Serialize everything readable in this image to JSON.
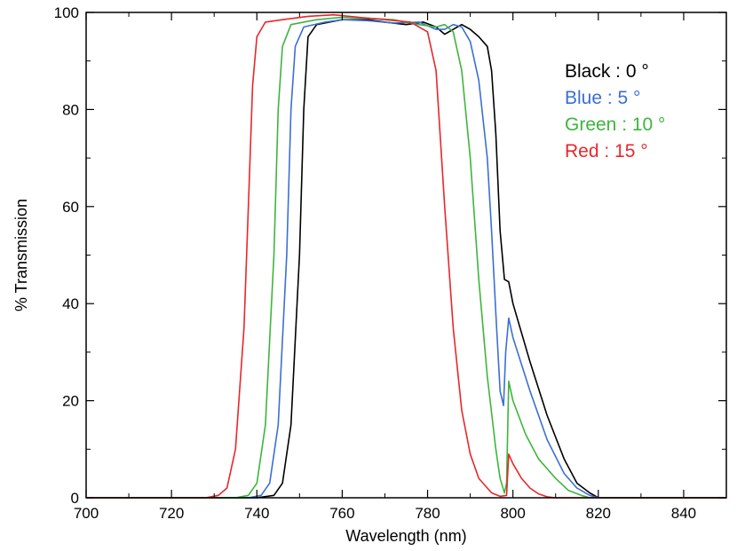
{
  "chart_data": {
    "type": "line",
    "title": "",
    "xlabel": "Wavelength (nm)",
    "ylabel": "% Transmission",
    "xlim": [
      700,
      850
    ],
    "ylim": [
      0,
      100
    ],
    "xticks": [
      700,
      720,
      740,
      760,
      780,
      800,
      820,
      840
    ],
    "yticks": [
      0,
      20,
      40,
      60,
      80,
      100
    ],
    "grid": false,
    "legend_position": "top-right",
    "series": [
      {
        "name": "Black : 0 °",
        "color": "#000000",
        "points": [
          [
            700,
            0
          ],
          [
            740,
            0
          ],
          [
            744,
            0.5
          ],
          [
            746,
            3
          ],
          [
            748,
            15
          ],
          [
            750,
            50
          ],
          [
            751,
            80
          ],
          [
            752,
            95
          ],
          [
            754,
            97.5
          ],
          [
            760,
            98.5
          ],
          [
            766,
            98.5
          ],
          [
            770,
            98
          ],
          [
            775,
            97.5
          ],
          [
            779,
            98
          ],
          [
            782,
            97
          ],
          [
            784,
            95.5
          ],
          [
            786,
            96.5
          ],
          [
            788,
            97.5
          ],
          [
            790,
            96.5
          ],
          [
            792,
            95
          ],
          [
            794,
            93
          ],
          [
            795,
            88
          ],
          [
            796,
            75
          ],
          [
            797,
            55
          ],
          [
            798,
            45
          ],
          [
            799,
            44.5
          ],
          [
            800,
            40
          ],
          [
            804,
            28
          ],
          [
            808,
            17
          ],
          [
            812,
            8
          ],
          [
            815,
            3
          ],
          [
            818,
            1
          ],
          [
            820,
            0
          ],
          [
            850,
            0
          ]
        ]
      },
      {
        "name": "Blue : 5 °",
        "color": "#3b6fd4",
        "points": [
          [
            700,
            0
          ],
          [
            738,
            0
          ],
          [
            741,
            0.5
          ],
          [
            743,
            3
          ],
          [
            745,
            15
          ],
          [
            747,
            50
          ],
          [
            748,
            80
          ],
          [
            749,
            93
          ],
          [
            751,
            97
          ],
          [
            756,
            98
          ],
          [
            760,
            98.5
          ],
          [
            766,
            98.3
          ],
          [
            772,
            97.8
          ],
          [
            778,
            98
          ],
          [
            782,
            96.5
          ],
          [
            784,
            96.5
          ],
          [
            786,
            97.5
          ],
          [
            788,
            97
          ],
          [
            790,
            94
          ],
          [
            792,
            86
          ],
          [
            794,
            70
          ],
          [
            795,
            55
          ],
          [
            796,
            38
          ],
          [
            797,
            22
          ],
          [
            797.8,
            19
          ],
          [
            798.3,
            30
          ],
          [
            799,
            37
          ],
          [
            800,
            33
          ],
          [
            804,
            22
          ],
          [
            808,
            12
          ],
          [
            812,
            5
          ],
          [
            815,
            2
          ],
          [
            818,
            0.5
          ],
          [
            820,
            0
          ],
          [
            850,
            0
          ]
        ]
      },
      {
        "name": "Green : 10 °",
        "color": "#3db53d",
        "points": [
          [
            700,
            0
          ],
          [
            735,
            0
          ],
          [
            738,
            0.5
          ],
          [
            740,
            3
          ],
          [
            742,
            15
          ],
          [
            744,
            50
          ],
          [
            745,
            80
          ],
          [
            746,
            93
          ],
          [
            748,
            97.5
          ],
          [
            754,
            98.5
          ],
          [
            760,
            99
          ],
          [
            766,
            98.8
          ],
          [
            772,
            98.5
          ],
          [
            778,
            97.5
          ],
          [
            782,
            97
          ],
          [
            784,
            97.5
          ],
          [
            786,
            96
          ],
          [
            788,
            88
          ],
          [
            790,
            70
          ],
          [
            792,
            45
          ],
          [
            794,
            25
          ],
          [
            796,
            10
          ],
          [
            797,
            4
          ],
          [
            798,
            1
          ],
          [
            798.5,
            3
          ],
          [
            799,
            24
          ],
          [
            800,
            20
          ],
          [
            803,
            13
          ],
          [
            806,
            8
          ],
          [
            810,
            4
          ],
          [
            813,
            1.5
          ],
          [
            816,
            0.5
          ],
          [
            818,
            0
          ],
          [
            850,
            0
          ]
        ]
      },
      {
        "name": "Red : 15 °",
        "color": "#e8262b",
        "points": [
          [
            700,
            0
          ],
          [
            728,
            0
          ],
          [
            731,
            0.5
          ],
          [
            733,
            2
          ],
          [
            735,
            10
          ],
          [
            737,
            35
          ],
          [
            738,
            60
          ],
          [
            739,
            85
          ],
          [
            740,
            95
          ],
          [
            742,
            98
          ],
          [
            746,
            98.5
          ],
          [
            752,
            99.2
          ],
          [
            758,
            99.5
          ],
          [
            764,
            99
          ],
          [
            770,
            98.5
          ],
          [
            776,
            98
          ],
          [
            780,
            96
          ],
          [
            782,
            88
          ],
          [
            784,
            60
          ],
          [
            786,
            35
          ],
          [
            788,
            18
          ],
          [
            790,
            9
          ],
          [
            792,
            4
          ],
          [
            795,
            1
          ],
          [
            797,
            0.3
          ],
          [
            798.5,
            0.5
          ],
          [
            799,
            9
          ],
          [
            800,
            7
          ],
          [
            802,
            4
          ],
          [
            804,
            2
          ],
          [
            806,
            0.8
          ],
          [
            808,
            0.2
          ],
          [
            810,
            0
          ],
          [
            850,
            0
          ]
        ]
      }
    ]
  }
}
